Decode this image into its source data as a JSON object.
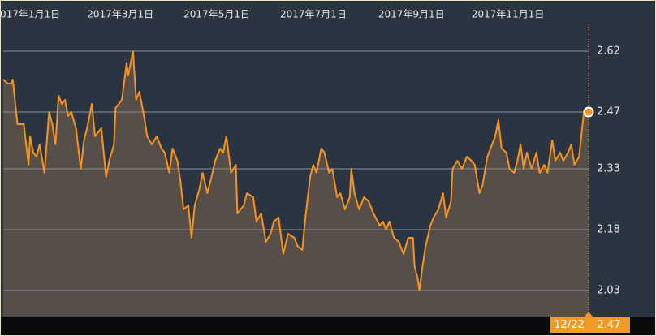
{
  "chart_data": {
    "type": "line",
    "x": [
      "2016-12-17",
      "2016-12-20",
      "2016-12-22",
      "2016-12-23",
      "2016-12-26",
      "2016-12-30",
      "2017-01-02",
      "2017-01-03",
      "2017-01-05",
      "2017-01-07",
      "2017-01-09",
      "2017-01-12",
      "2017-01-15",
      "2017-01-17",
      "2017-01-19",
      "2017-01-21",
      "2017-01-23",
      "2017-01-25",
      "2017-01-27",
      "2017-01-29",
      "2017-02-01",
      "2017-02-04",
      "2017-02-06",
      "2017-02-08",
      "2017-02-11",
      "2017-02-13",
      "2017-02-17",
      "2017-02-20",
      "2017-02-22",
      "2017-02-25",
      "2017-02-26",
      "2017-03-02",
      "2017-03-05",
      "2017-03-06",
      "2017-03-09",
      "2017-03-11",
      "2017-03-13",
      "2017-03-16",
      "2017-03-18",
      "2017-03-21",
      "2017-03-24",
      "2017-03-27",
      "2017-03-29",
      "2017-04-01",
      "2017-04-03",
      "2017-04-06",
      "2017-04-08",
      "2017-04-10",
      "2017-04-13",
      "2017-04-15",
      "2017-04-17",
      "2017-04-20",
      "2017-04-22",
      "2017-04-25",
      "2017-04-27",
      "2017-04-30",
      "2017-05-03",
      "2017-05-05",
      "2017-05-07",
      "2017-05-10",
      "2017-05-13",
      "2017-05-14",
      "2017-05-18",
      "2017-05-20",
      "2017-05-24",
      "2017-05-26",
      "2017-05-29",
      "2017-06-01",
      "2017-06-04",
      "2017-06-06",
      "2017-06-09",
      "2017-06-12",
      "2017-06-15",
      "2017-06-19",
      "2017-06-21",
      "2017-06-24",
      "2017-06-26",
      "2017-06-29",
      "2017-07-01",
      "2017-07-03",
      "2017-07-06",
      "2017-07-08",
      "2017-07-11",
      "2017-07-13",
      "2017-07-16",
      "2017-07-18",
      "2017-07-21",
      "2017-07-24",
      "2017-07-25",
      "2017-07-27",
      "2017-07-30",
      "2017-08-02",
      "2017-08-05",
      "2017-08-08",
      "2017-08-12",
      "2017-08-14",
      "2017-08-16",
      "2017-08-18",
      "2017-08-21",
      "2017-08-24",
      "2017-08-27",
      "2017-08-30",
      "2017-09-02",
      "2017-09-03",
      "2017-09-05",
      "2017-09-06",
      "2017-09-08",
      "2017-09-10",
      "2017-09-13",
      "2017-09-15",
      "2017-09-18",
      "2017-09-21",
      "2017-09-23",
      "2017-09-26",
      "2017-09-27",
      "2017-09-30",
      "2017-10-03",
      "2017-10-06",
      "2017-10-09",
      "2017-10-11",
      "2017-10-14",
      "2017-10-16",
      "2017-10-19",
      "2017-10-21",
      "2017-10-24",
      "2017-10-26",
      "2017-10-28",
      "2017-10-31",
      "2017-11-02",
      "2017-11-05",
      "2017-11-07",
      "2017-11-09",
      "2017-11-11",
      "2017-11-13",
      "2017-11-16",
      "2017-11-19",
      "2017-11-21",
      "2017-11-24",
      "2017-11-26",
      "2017-11-29",
      "2017-12-01",
      "2017-12-04",
      "2017-12-06",
      "2017-12-09",
      "2017-12-11",
      "2017-12-13",
      "2017-12-16",
      "2017-12-19",
      "2017-12-22"
    ],
    "series": [
      {
        "color": "#f7931e",
        "values": [
          2.55,
          2.54,
          2.54,
          2.55,
          2.44,
          2.44,
          2.34,
          2.41,
          2.37,
          2.36,
          2.39,
          2.32,
          2.47,
          2.44,
          2.39,
          2.51,
          2.49,
          2.5,
          2.46,
          2.47,
          2.43,
          2.33,
          2.4,
          2.43,
          2.49,
          2.41,
          2.43,
          2.31,
          2.35,
          2.39,
          2.48,
          2.5,
          2.59,
          2.56,
          2.62,
          2.5,
          2.52,
          2.46,
          2.41,
          2.39,
          2.41,
          2.38,
          2.37,
          2.32,
          2.38,
          2.35,
          2.3,
          2.23,
          2.24,
          2.16,
          2.24,
          2.28,
          2.32,
          2.27,
          2.3,
          2.35,
          2.38,
          2.37,
          2.41,
          2.32,
          2.34,
          2.22,
          2.24,
          2.27,
          2.26,
          2.2,
          2.22,
          2.15,
          2.17,
          2.2,
          2.21,
          2.12,
          2.17,
          2.16,
          2.14,
          2.13,
          2.21,
          2.31,
          2.34,
          2.32,
          2.38,
          2.37,
          2.32,
          2.33,
          2.26,
          2.27,
          2.23,
          2.26,
          2.33,
          2.27,
          2.23,
          2.26,
          2.25,
          2.22,
          2.19,
          2.2,
          2.18,
          2.2,
          2.16,
          2.15,
          2.12,
          2.16,
          2.16,
          2.09,
          2.06,
          2.03,
          2.09,
          2.14,
          2.19,
          2.21,
          2.23,
          2.27,
          2.21,
          2.25,
          2.33,
          2.35,
          2.33,
          2.36,
          2.35,
          2.34,
          2.27,
          2.29,
          2.36,
          2.38,
          2.41,
          2.45,
          2.38,
          2.37,
          2.33,
          2.32,
          2.35,
          2.39,
          2.33,
          2.37,
          2.33,
          2.37,
          2.32,
          2.34,
          2.32,
          2.4,
          2.35,
          2.37,
          2.35,
          2.37,
          2.39,
          2.34,
          2.36,
          2.47,
          2.47
        ]
      }
    ],
    "xlim": [
      "2016-12-17",
      "2017-12-22"
    ],
    "xticks": [
      {
        "value": "2017-01-01",
        "label": "2017年1月1日"
      },
      {
        "value": "2017-03-01",
        "label": "2017年3月1日"
      },
      {
        "value": "2017-05-01",
        "label": "2017年5月1日"
      },
      {
        "value": "2017-07-01",
        "label": "2017年7月1日"
      },
      {
        "value": "2017-09-01",
        "label": "2017年9月1日"
      },
      {
        "value": "2017-11-01",
        "label": "2017年11月1日"
      }
    ],
    "ylim": [
      1.966,
      2.686
    ],
    "yticks": [
      2.62,
      2.47,
      2.33,
      2.18,
      2.03
    ],
    "grid": true,
    "end_marker": {
      "label": "12/22",
      "value": 2.47
    }
  }
}
